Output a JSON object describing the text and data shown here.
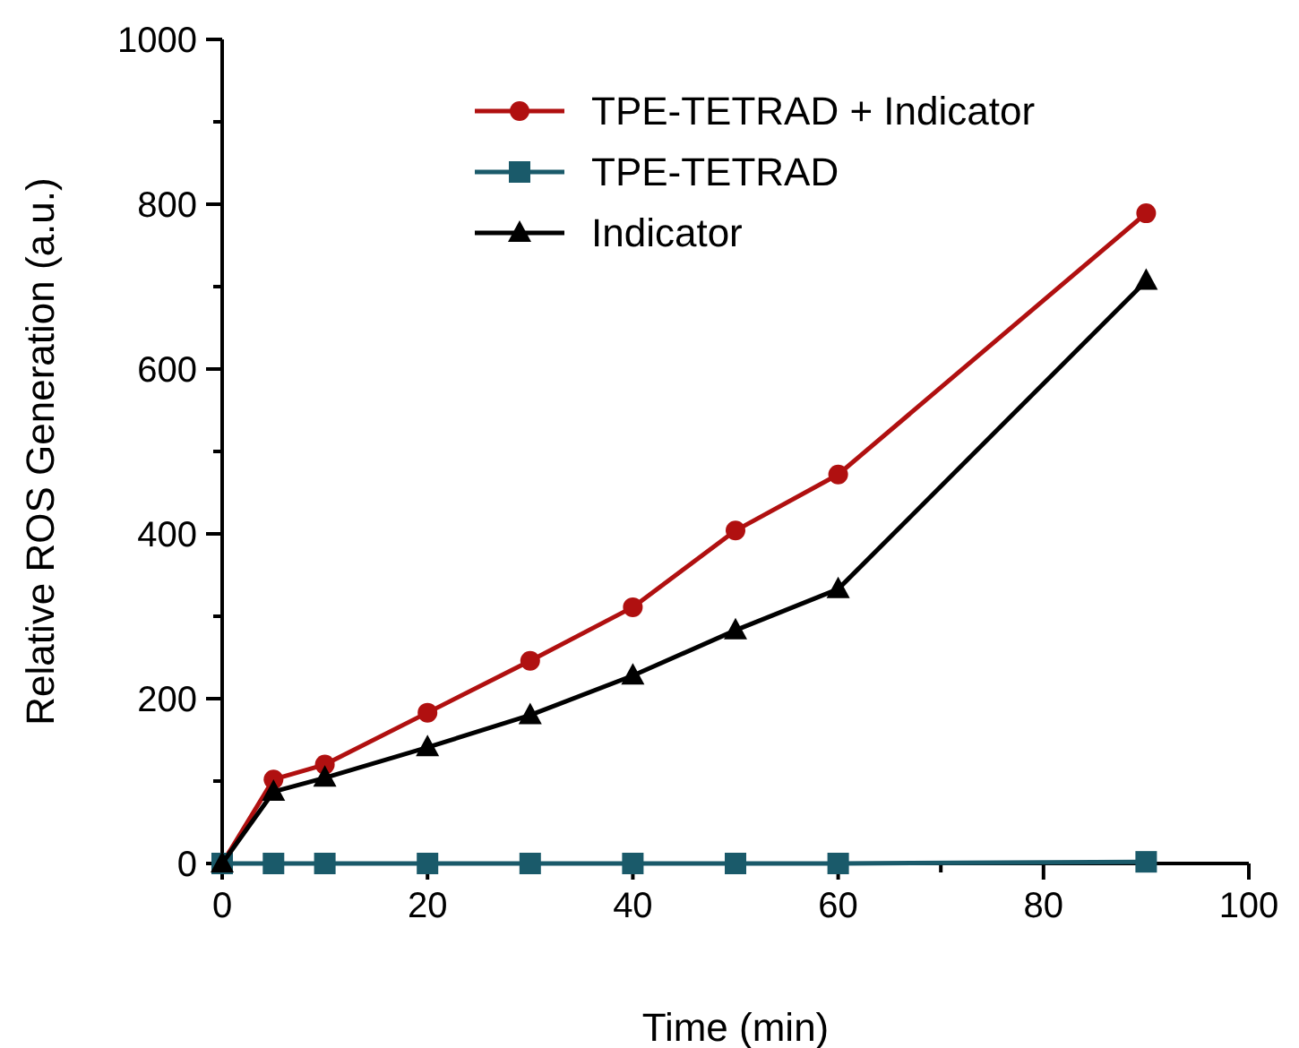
{
  "chart_data": {
    "type": "line",
    "xlabel": "Time (min)",
    "ylabel": "Relative ROS Generation (a.u.)",
    "x": [
      0,
      5,
      10,
      20,
      30,
      40,
      50,
      60,
      90
    ],
    "xlim": [
      0,
      100
    ],
    "ylim": [
      0,
      1000
    ],
    "xticks": [
      0,
      {
        "value": 10,
        "label": null
      },
      20,
      {
        "value": 30,
        "label": null
      },
      40,
      {
        "value": 50,
        "label": null
      },
      60,
      {
        "value": 70,
        "label": null
      },
      80,
      {
        "value": 90,
        "label": null
      },
      100
    ],
    "yticks": [
      0,
      {
        "value": 100,
        "label": null
      },
      200,
      {
        "value": 300,
        "label": null
      },
      400,
      {
        "value": 500,
        "label": null
      },
      600,
      {
        "value": 700,
        "label": null
      },
      800,
      {
        "value": 900,
        "label": null
      },
      1000
    ],
    "grid": false,
    "legend": "top right",
    "line_style": "solid",
    "series": [
      {
        "name": "TPE-TETRAD + Indicator",
        "color": "#b01010",
        "marker": "circle",
        "values": [
          0,
          102,
          120,
          183,
          246,
          311,
          404,
          472,
          789
        ]
      },
      {
        "name": "TPE-TETRAD",
        "color": "#1a5a6a",
        "marker": "square",
        "values": [
          0,
          0,
          0,
          0,
          0,
          0,
          0,
          0,
          2
        ]
      },
      {
        "name": "Indicator",
        "color": "#000000",
        "marker": "triangle",
        "values": [
          0,
          87,
          104,
          141,
          180,
          228,
          283,
          333,
          707
        ]
      }
    ]
  }
}
